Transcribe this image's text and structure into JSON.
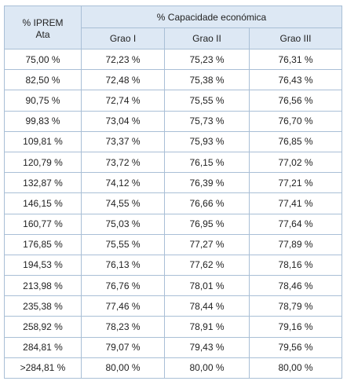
{
  "table": {
    "corner_header_line1": "% IPREM",
    "corner_header_line2": "Ata",
    "group_header": "% Capacidade económica",
    "grade_headers": [
      "Grao I",
      "Grao II",
      "Grao III"
    ],
    "rows": [
      [
        "75,00 %",
        "72,23 %",
        "75,23 %",
        "76,31 %"
      ],
      [
        "82,50 %",
        "72,48 %",
        "75,38 %",
        "76,43 %"
      ],
      [
        "90,75 %",
        "72,74 %",
        "75,55 %",
        "76,56 %"
      ],
      [
        "99,83 %",
        "73,04 %",
        "75,73 %",
        "76,70 %"
      ],
      [
        "109,81 %",
        "73,37 %",
        "75,93 %",
        "76,85 %"
      ],
      [
        "120,79 %",
        "73,72 %",
        "76,15 %",
        "77,02 %"
      ],
      [
        "132,87 %",
        "74,12 %",
        "76,39 %",
        "77,21 %"
      ],
      [
        "146,15 %",
        "74,55 %",
        "76,66 %",
        "77,41 %"
      ],
      [
        "160,77 %",
        "75,03 %",
        "76,95 %",
        "77,64 %"
      ],
      [
        "176,85 %",
        "75,55 %",
        "77,27 %",
        "77,89 %"
      ],
      [
        "194,53 %",
        "76,13 %",
        "77,62 %",
        "78,16 %"
      ],
      [
        "213,98 %",
        "76,76 %",
        "78,01 %",
        "78,46 %"
      ],
      [
        "235,38 %",
        "77,46 %",
        "78,44 %",
        "78,79 %"
      ],
      [
        "258,92 %",
        "78,23 %",
        "78,91 %",
        "79,16 %"
      ],
      [
        "284,81 %",
        "79,07 %",
        "79,43 %",
        "79,56 %"
      ],
      [
        ">284,81 %",
        "80,00 %",
        "80,00 %",
        "80,00 %"
      ]
    ]
  }
}
